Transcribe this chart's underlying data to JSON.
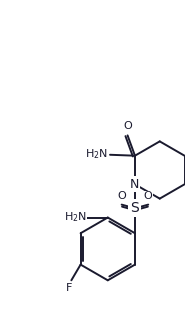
{
  "background": "#ffffff",
  "line_color": "#1a1a2e",
  "line_width": 1.4,
  "font_size": 8,
  "fig_width": 1.86,
  "fig_height": 3.28,
  "dpi": 100,
  "xlim": [
    0,
    10
  ],
  "ylim": [
    0,
    17.6
  ]
}
